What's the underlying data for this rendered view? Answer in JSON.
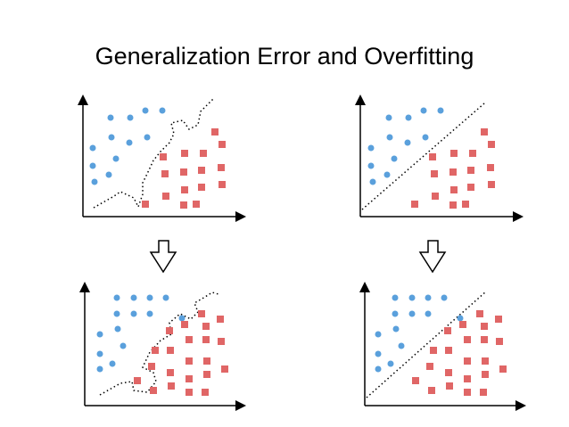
{
  "title": "Generalization Error and Overfitting"
}
